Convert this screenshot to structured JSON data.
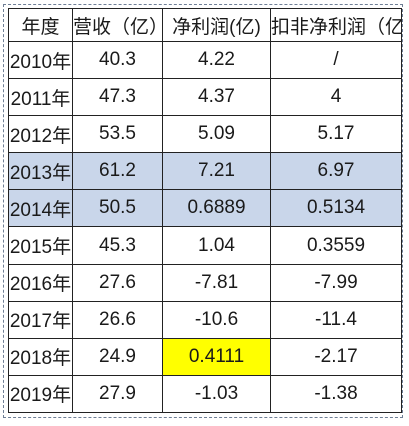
{
  "table": {
    "headers": [
      "年度",
      "营收（亿）",
      "净利润(亿)",
      "扣非净利润（亿）"
    ],
    "rows": [
      {
        "year": "2010年",
        "revenue": "40.3",
        "net_profit": "4.22",
        "deducted_net_profit": "/"
      },
      {
        "year": "2011年",
        "revenue": "47.3",
        "net_profit": "4.37",
        "deducted_net_profit": "4"
      },
      {
        "year": "2012年",
        "revenue": "53.5",
        "net_profit": "5.09",
        "deducted_net_profit": "5.17"
      },
      {
        "year": "2013年",
        "revenue": "61.2",
        "net_profit": "7.21",
        "deducted_net_profit": "6.97"
      },
      {
        "year": "2014年",
        "revenue": "50.5",
        "net_profit": "0.6889",
        "deducted_net_profit": "0.5134"
      },
      {
        "year": "2015年",
        "revenue": "45.3",
        "net_profit": "1.04",
        "deducted_net_profit": "0.3559"
      },
      {
        "year": "2016年",
        "revenue": "27.6",
        "net_profit": "-7.81",
        "deducted_net_profit": "-7.99"
      },
      {
        "year": "2017年",
        "revenue": "26.6",
        "net_profit": "-10.6",
        "deducted_net_profit": "-11.4"
      },
      {
        "year": "2018年",
        "revenue": "24.9",
        "net_profit": "0.4111",
        "deducted_net_profit": "-2.17"
      },
      {
        "year": "2019年",
        "revenue": "27.9",
        "net_profit": "-1.03",
        "deducted_net_profit": "-1.38"
      }
    ]
  },
  "highlight_colors": {
    "blue_rows": "#c9d6ea",
    "yellow_cell": "#ffff00"
  }
}
